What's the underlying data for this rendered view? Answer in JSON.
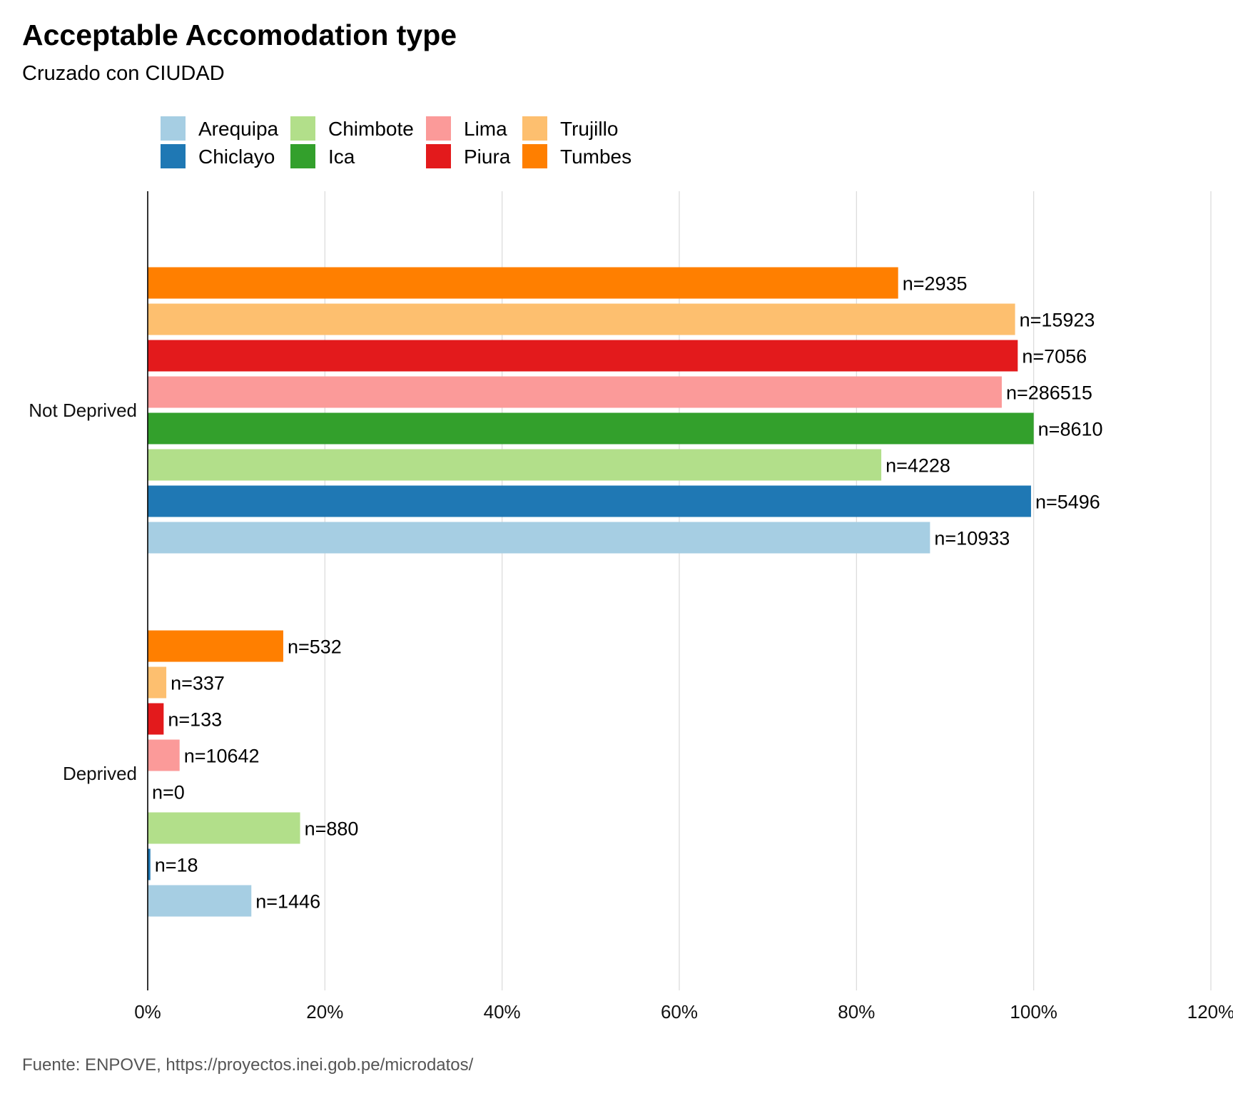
{
  "chart_data": {
    "type": "bar",
    "orientation": "horizontal",
    "title": "Acceptable Accomodation type",
    "subtitle": "Cruzado con CIUDAD",
    "caption": "Fuente:  ENPOVE, https://proyectos.inei.gob.pe/microdatos/",
    "categories": [
      "Not Deprived",
      "Deprived"
    ],
    "xlim": [
      0,
      1.2
    ],
    "x_ticks": [
      0,
      0.2,
      0.4,
      0.6,
      0.8,
      1.0,
      1.2
    ],
    "x_tick_labels": [
      "0%",
      "20%",
      "40%",
      "60%",
      "80%",
      "100%",
      "120%"
    ],
    "grid": "vertical major",
    "legend_position": "top",
    "series": [
      {
        "name": "Arequipa",
        "color": "#A6CEE3",
        "values": [
          0.883,
          0.117
        ],
        "labels": [
          "n=10933",
          "n=1446"
        ]
      },
      {
        "name": "Chiclayo",
        "color": "#1F78B4",
        "values": [
          0.997,
          0.003
        ],
        "labels": [
          "n=5496",
          "n=18"
        ]
      },
      {
        "name": "Chimbote",
        "color": "#B2DF8A",
        "values": [
          0.828,
          0.172
        ],
        "labels": [
          "n=4228",
          "n=880"
        ]
      },
      {
        "name": "Ica",
        "color": "#33A02C",
        "values": [
          1.0,
          0.0
        ],
        "labels": [
          "n=8610",
          "n=0"
        ]
      },
      {
        "name": "Lima",
        "color": "#FB9A99",
        "values": [
          0.964,
          0.036
        ],
        "labels": [
          "n=286515",
          "n=10642"
        ]
      },
      {
        "name": "Piura",
        "color": "#E31A1C",
        "values": [
          0.982,
          0.018
        ],
        "labels": [
          "n=7056",
          "n=133"
        ]
      },
      {
        "name": "Trujillo",
        "color": "#FDBF6F",
        "values": [
          0.979,
          0.021
        ],
        "labels": [
          "n=15923",
          "n=337"
        ]
      },
      {
        "name": "Tumbes",
        "color": "#FF7F00",
        "values": [
          0.847,
          0.153
        ],
        "labels": [
          "n=2935",
          "n=532"
        ]
      }
    ]
  }
}
